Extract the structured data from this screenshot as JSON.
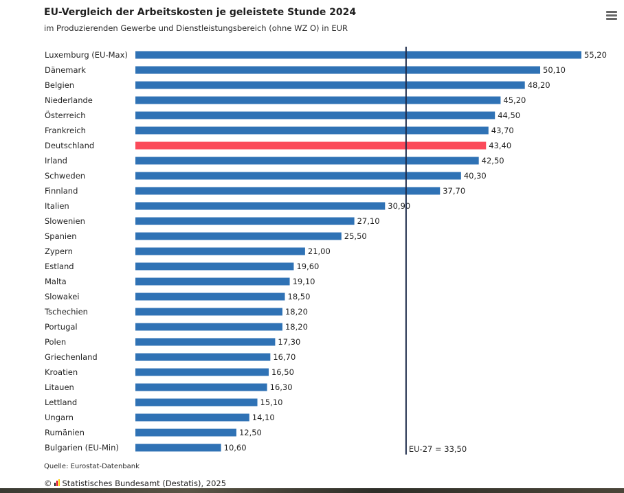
{
  "header": {
    "title": "EU-Vergleich der Arbeitskosten je geleistete Stunde 2024",
    "subtitle": "im Produzierenden Gewerbe und Dienstleistungsbereich (ohne WZ O) in EUR",
    "menu_icon": "hamburger-menu-icon"
  },
  "colors": {
    "bar": "#2f72b5",
    "highlight": "#fb4a5a",
    "reference_line": "#1d2b4a"
  },
  "chart_data": {
    "type": "bar",
    "orientation": "horizontal",
    "title": "EU-Vergleich der Arbeitskosten je geleistete Stunde 2024",
    "subtitle": "im Produzierenden Gewerbe und Dienstleistungsbereich (ohne WZ O) in EUR",
    "categories": [
      "Luxemburg (EU-Max)",
      "Dänemark",
      "Belgien",
      "Niederlande",
      "Österreich",
      "Frankreich",
      "Deutschland",
      "Irland",
      "Schweden",
      "Finnland",
      "Italien",
      "Slowenien",
      "Spanien",
      "Zypern",
      "Estland",
      "Malta",
      "Slowakei",
      "Tschechien",
      "Portugal",
      "Polen",
      "Griechenland",
      "Kroatien",
      "Litauen",
      "Lettland",
      "Ungarn",
      "Rumänien",
      "Bulgarien (EU-Min)"
    ],
    "values": [
      55.2,
      50.1,
      48.2,
      45.2,
      44.5,
      43.7,
      43.4,
      42.5,
      40.3,
      37.7,
      30.9,
      27.1,
      25.5,
      21.0,
      19.6,
      19.1,
      18.5,
      18.2,
      18.2,
      17.3,
      16.7,
      16.5,
      16.3,
      15.1,
      14.1,
      12.5,
      10.6
    ],
    "value_labels": [
      "55,20",
      "50,10",
      "48,20",
      "45,20",
      "44,50",
      "43,70",
      "43,40",
      "42,50",
      "40,30",
      "37,70",
      "30,90",
      "27,10",
      "25,50",
      "21,00",
      "19,60",
      "19,10",
      "18,50",
      "18,20",
      "18,20",
      "17,30",
      "16,70",
      "16,50",
      "16,30",
      "15,10",
      "14,10",
      "12,50",
      "10,60"
    ],
    "highlighted_category": "Deutschland",
    "reference_line": {
      "value": 33.5,
      "label": "EU-27 = 33,50"
    },
    "xlim": [
      0,
      55.2
    ],
    "grid": false,
    "legend": "none"
  },
  "footer": {
    "source": "Quelle: Eurostat-Datenbank",
    "copyright_symbol": "©",
    "publisher": "Statistisches Bundesamt (Destatis), 2025",
    "logo_icon": "destatis-logo-icon"
  }
}
